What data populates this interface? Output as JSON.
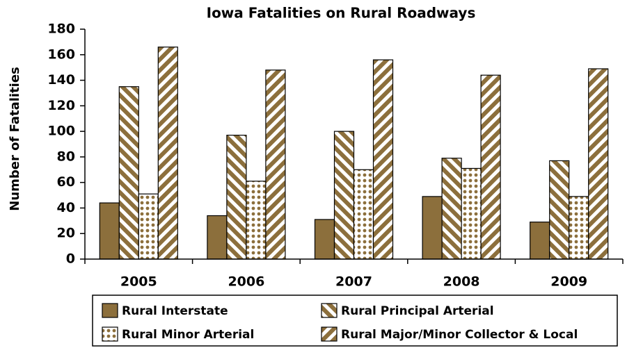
{
  "chart_data": {
    "type": "bar",
    "title": "Iowa Fatalities on Rural Roadways",
    "y_label": "Number of Fatalities",
    "categories": [
      "2005",
      "2006",
      "2007",
      "2008",
      "2009"
    ],
    "series": [
      {
        "name": "Rural Interstate",
        "color": "#8c6f3c",
        "pattern": "solid",
        "values": [
          44,
          34,
          31,
          49,
          29
        ]
      },
      {
        "name": "Rural Principal Arterial",
        "color": "#8c6f3c",
        "pattern": "backslash",
        "values": [
          135,
          97,
          100,
          79,
          77
        ]
      },
      {
        "name": "Rural Minor Arterial",
        "color": "#8c6f3c",
        "pattern": "dots",
        "values": [
          51,
          61,
          70,
          71,
          49
        ]
      },
      {
        "name": "Rural Major/Minor Collector & Local",
        "color": "#8c6f3c",
        "pattern": "slash",
        "values": [
          166,
          148,
          156,
          144,
          149
        ]
      }
    ],
    "ylim": [
      0,
      180
    ],
    "yticks": [
      0,
      20,
      40,
      60,
      80,
      100,
      120,
      140,
      160,
      180
    ],
    "grid": false,
    "legend": "bottom"
  }
}
